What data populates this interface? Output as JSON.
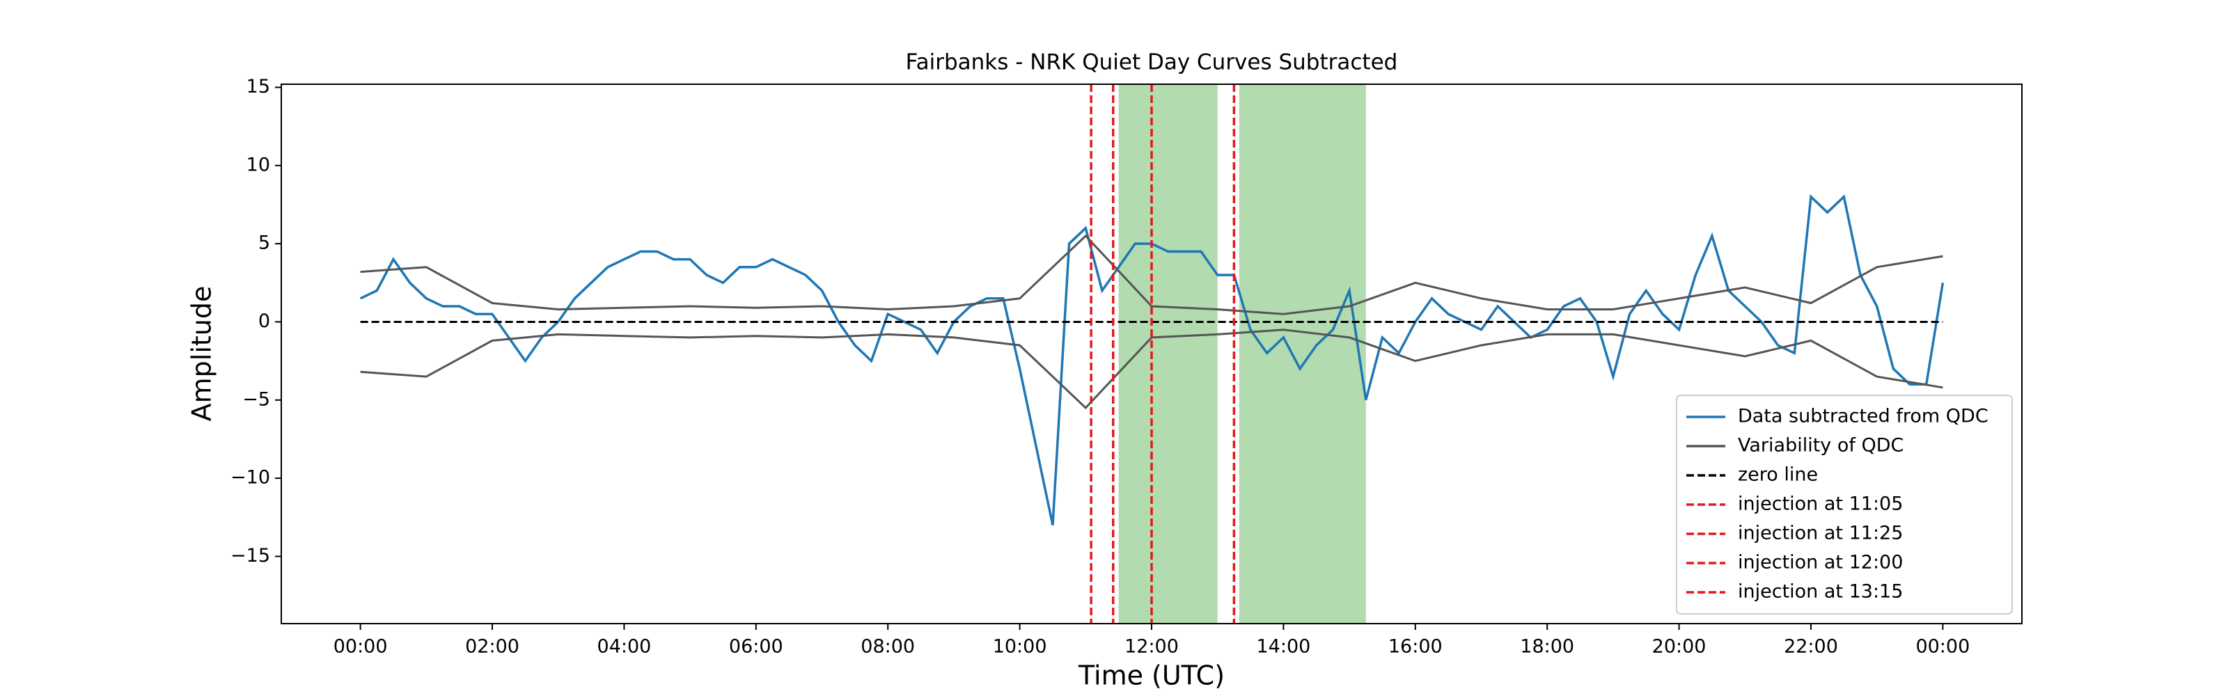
{
  "chart_data": {
    "type": "line",
    "title": "Fairbanks - NRK Quiet Day Curves Subtracted",
    "xlabel": "Time (UTC)",
    "ylabel": "Amplitude",
    "xlim": [
      -1.2,
      25.2
    ],
    "ylim": [
      -19.3,
      15.2
    ],
    "xticks": [
      {
        "value": 0,
        "label": "00:00"
      },
      {
        "value": 2,
        "label": "02:00"
      },
      {
        "value": 4,
        "label": "04:00"
      },
      {
        "value": 6,
        "label": "06:00"
      },
      {
        "value": 8,
        "label": "08:00"
      },
      {
        "value": 10,
        "label": "10:00"
      },
      {
        "value": 12,
        "label": "12:00"
      },
      {
        "value": 14,
        "label": "14:00"
      },
      {
        "value": 16,
        "label": "16:00"
      },
      {
        "value": 18,
        "label": "18:00"
      },
      {
        "value": 20,
        "label": "20:00"
      },
      {
        "value": 22,
        "label": "22:00"
      },
      {
        "value": 24,
        "label": "00:00"
      }
    ],
    "yticks": [
      {
        "value": -15,
        "label": "−15"
      },
      {
        "value": -10,
        "label": "−10"
      },
      {
        "value": -5,
        "label": "−5"
      },
      0,
      5,
      10,
      15
    ],
    "series": [
      {
        "name": "Data subtracted from QDC",
        "color": "#1f77b4",
        "x": [
          0,
          0.25,
          0.5,
          0.75,
          1,
          1.25,
          1.5,
          1.75,
          2,
          2.25,
          2.5,
          2.75,
          3,
          3.25,
          3.5,
          3.75,
          4,
          4.25,
          4.5,
          4.75,
          5,
          5.25,
          5.5,
          5.75,
          6,
          6.25,
          6.5,
          6.75,
          7,
          7.25,
          7.5,
          7.75,
          8,
          8.25,
          8.5,
          8.75,
          9,
          9.25,
          9.5,
          9.75,
          10,
          10.25,
          10.5,
          10.75,
          11,
          11.25,
          11.5,
          11.75,
          12,
          12.25,
          12.5,
          12.75,
          13,
          13.25,
          13.5,
          13.75,
          14,
          14.25,
          14.5,
          14.75,
          15,
          15.25,
          15.5,
          15.75,
          16,
          16.25,
          16.5,
          16.75,
          17,
          17.25,
          17.5,
          17.75,
          18,
          18.25,
          18.5,
          18.75,
          19,
          19.25,
          19.5,
          19.75,
          20,
          20.25,
          20.5,
          20.75,
          21,
          21.25,
          21.5,
          21.75,
          22,
          22.25,
          22.5,
          22.75,
          23,
          23.25,
          23.5,
          23.75,
          24
        ],
        "values": [
          1.5,
          2,
          4,
          2.5,
          1.5,
          1,
          1,
          0.5,
          0.5,
          -1,
          -2.5,
          -1,
          0,
          1.5,
          2.5,
          3.5,
          4,
          4.5,
          4.5,
          4,
          4,
          3,
          2.5,
          3.5,
          3.5,
          4,
          3.5,
          3,
          2,
          0,
          -1.5,
          -2.5,
          0.5,
          0,
          -0.5,
          -2,
          0,
          1,
          1.5,
          1.5,
          -3,
          -8,
          -13,
          5,
          6,
          2,
          3.5,
          5,
          5,
          4.5,
          4.5,
          4.5,
          3,
          3,
          -0.5,
          -2,
          -1,
          -3,
          -1.5,
          -0.5,
          2,
          -5,
          -1,
          -2,
          0,
          1.5,
          0.5,
          0,
          -0.5,
          1,
          0,
          -1,
          -0.5,
          1,
          1.5,
          0,
          -3.5,
          0.5,
          2,
          0.5,
          -0.5,
          3,
          5.5,
          2,
          1,
          0,
          -1.5,
          -2,
          8,
          7,
          8,
          3,
          1,
          -3,
          -4,
          -4,
          2.5
        ]
      },
      {
        "name": "Variability of QDC",
        "color": "#555555",
        "x": [
          0,
          1,
          2,
          3,
          4,
          5,
          6,
          7,
          8,
          9,
          10,
          11,
          12,
          13,
          14,
          15,
          16,
          17,
          18,
          19,
          20,
          21,
          22,
          23,
          24
        ],
        "values": [
          3.2,
          3.5,
          1.2,
          0.8,
          0.9,
          1,
          0.9,
          1,
          0.8,
          1,
          1.5,
          5.5,
          1,
          0.8,
          0.5,
          1,
          2.5,
          1.5,
          0.8,
          0.8,
          1.5,
          2.2,
          1.2,
          3.5,
          4.2
        ]
      },
      {
        "color": "#555555",
        "x": [
          0,
          1,
          2,
          3,
          4,
          5,
          6,
          7,
          8,
          9,
          10,
          11,
          12,
          13,
          14,
          15,
          16,
          17,
          18,
          19,
          20,
          21,
          22,
          23,
          24
        ],
        "values": [
          -3.2,
          -3.5,
          -1.2,
          -0.8,
          -0.9,
          -1,
          -0.9,
          -1,
          -0.8,
          -1,
          -1.5,
          -5.5,
          -1,
          -0.8,
          -0.5,
          -1,
          -2.5,
          -1.5,
          -0.8,
          -0.8,
          -1.5,
          -2.2,
          -1.2,
          -3.5,
          -4.2
        ]
      }
    ],
    "hlines": [
      {
        "name": "zero line",
        "y": 0,
        "x": [
          0,
          24
        ],
        "color": "#000000"
      }
    ],
    "vlines": [
      {
        "name": "injection at 11:05",
        "x": 11.083,
        "color": "#e31a1c"
      },
      {
        "name": "injection at 11:25",
        "x": 11.417,
        "color": "#e31a1c"
      },
      {
        "name": "injection at 12:00",
        "x": 12,
        "color": "#e31a1c"
      },
      {
        "name": "injection at 13:15",
        "x": 13.25,
        "color": "#e31a1c"
      }
    ],
    "spans": [
      {
        "x": [
          11.5,
          13.0
        ],
        "color": "#b2dbb0"
      },
      {
        "x": [
          13.33,
          15.25
        ],
        "color": "#b2dbb0"
      }
    ],
    "legend": "lower right"
  }
}
